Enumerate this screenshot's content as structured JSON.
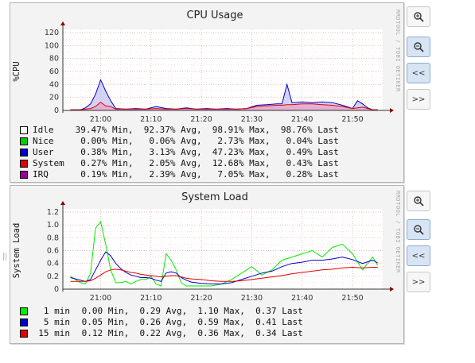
{
  "vertical_label": "RRDTOOL / TOBI OETIKER",
  "buttons": {
    "zoom_in_icon": "zoom-in-icon",
    "zoom_out_icon": "zoom-out-icon",
    "prev": "<<",
    "next": ">>"
  },
  "chart_data": [
    {
      "type": "area",
      "title": "CPU Usage",
      "ylabel": "%CPU",
      "ylim": [
        0,
        120
      ],
      "yticks": [
        "0",
        "20",
        "40",
        "60",
        "80",
        "100",
        "120"
      ],
      "xticks": [
        "21:00",
        "21:10",
        "21:20",
        "21:30",
        "21:40",
        "21:50"
      ],
      "x": [
        "20:54",
        "20:56",
        "20:57",
        "20:58",
        "20:59",
        "21:00",
        "21:01",
        "21:02",
        "21:03",
        "21:05",
        "21:07",
        "21:09",
        "21:11",
        "21:13",
        "21:15",
        "21:17",
        "21:19",
        "21:21",
        "21:23",
        "21:25",
        "21:27",
        "21:29",
        "21:31",
        "21:33",
        "21:35",
        "21:36",
        "21:37",
        "21:38",
        "21:40",
        "21:42",
        "21:44",
        "21:46",
        "21:48",
        "21:50",
        "21:51",
        "21:52",
        "21:53",
        "21:54",
        "21:55"
      ],
      "series": [
        {
          "name": "User",
          "color": "#0000cc",
          "values": [
            1,
            1,
            4,
            10,
            25,
            47,
            30,
            15,
            3,
            2,
            3,
            2,
            6,
            3,
            2,
            4,
            2,
            3,
            2,
            3,
            2,
            3,
            8,
            9,
            10,
            10,
            40,
            12,
            13,
            12,
            13,
            12,
            8,
            3,
            15,
            10,
            4,
            1,
            1
          ]
        },
        {
          "name": "System",
          "color": "#e00000",
          "values": [
            1,
            1,
            2,
            3,
            6,
            12.7,
            7,
            6,
            2,
            2,
            2,
            2,
            3,
            2,
            2,
            3,
            2,
            2,
            2,
            2,
            2,
            3,
            6,
            7,
            8,
            8,
            9,
            9,
            10,
            10,
            9,
            8,
            6,
            3,
            4,
            5,
            3,
            1,
            1
          ]
        }
      ],
      "legend": [
        {
          "name": "Idle",
          "color": "#ffffff",
          "min": "39.47%",
          "avg": "92.37%",
          "max": "98.91%",
          "last": "98.76%"
        },
        {
          "name": "Nice",
          "color": "#00cc00",
          "min": "0.00%",
          "avg": "0.06%",
          "max": "2.73%",
          "last": "0.04%"
        },
        {
          "name": "User",
          "color": "#0000cc",
          "min": "0.38%",
          "avg": "3.13%",
          "max": "47.23%",
          "last": "0.49%"
        },
        {
          "name": "System",
          "color": "#e00000",
          "min": "0.27%",
          "avg": "2.05%",
          "max": "12.68%",
          "last": "0.43%"
        },
        {
          "name": "IRQ",
          "color": "#990099",
          "min": "0.19%",
          "avg": "2.39%",
          "max": "7.05%",
          "last": "0.28%"
        }
      ]
    },
    {
      "type": "line",
      "title": "System Load",
      "ylabel": "System Load",
      "ylim": [
        0,
        1.2
      ],
      "yticks": [
        "0",
        "0.2",
        "0.4",
        "0.6",
        "0.8",
        "1.0",
        "1.2"
      ],
      "xticks": [
        "21:00",
        "21:10",
        "21:20",
        "21:30",
        "21:40",
        "21:50"
      ],
      "x": [
        "20:54",
        "20:55",
        "20:56",
        "20:57",
        "20:58",
        "20:59",
        "21:00",
        "21:01",
        "21:02",
        "21:03",
        "21:04",
        "21:05",
        "21:06",
        "21:07",
        "21:08",
        "21:09",
        "21:10",
        "21:11",
        "21:12",
        "21:13",
        "21:14",
        "21:15",
        "21:16",
        "21:17",
        "21:18",
        "21:20",
        "21:22",
        "21:24",
        "21:26",
        "21:28",
        "21:30",
        "21:32",
        "21:34",
        "21:36",
        "21:38",
        "21:40",
        "21:42",
        "21:44",
        "21:46",
        "21:48",
        "21:50",
        "21:52",
        "21:54",
        "21:55"
      ],
      "series": [
        {
          "name": "1 min",
          "color": "#00ee00",
          "values": [
            0.2,
            0.15,
            0.1,
            0.08,
            0.25,
            0.95,
            1.05,
            0.7,
            0.3,
            0.1,
            0.1,
            0.12,
            0.08,
            0.12,
            0.15,
            0.15,
            0.2,
            0.08,
            0.05,
            0.55,
            0.45,
            0.3,
            0.1,
            0.05,
            0.05,
            0.05,
            0.05,
            0.08,
            0.15,
            0.25,
            0.35,
            0.22,
            0.3,
            0.45,
            0.5,
            0.55,
            0.6,
            0.5,
            0.65,
            0.7,
            0.55,
            0.3,
            0.5,
            0.37
          ]
        },
        {
          "name": "5 min",
          "color": "#0000cc",
          "values": [
            0.18,
            0.16,
            0.14,
            0.12,
            0.15,
            0.3,
            0.45,
            0.58,
            0.52,
            0.4,
            0.32,
            0.26,
            0.22,
            0.2,
            0.18,
            0.18,
            0.17,
            0.14,
            0.12,
            0.25,
            0.27,
            0.25,
            0.18,
            0.14,
            0.11,
            0.09,
            0.08,
            0.08,
            0.1,
            0.15,
            0.2,
            0.25,
            0.28,
            0.35,
            0.4,
            0.42,
            0.45,
            0.45,
            0.47,
            0.5,
            0.46,
            0.4,
            0.45,
            0.41
          ]
        },
        {
          "name": "15 min",
          "color": "#e00000",
          "values": [
            0.12,
            0.12,
            0.12,
            0.12,
            0.13,
            0.17,
            0.22,
            0.27,
            0.3,
            0.31,
            0.3,
            0.28,
            0.26,
            0.25,
            0.23,
            0.22,
            0.21,
            0.2,
            0.19,
            0.2,
            0.21,
            0.21,
            0.19,
            0.17,
            0.16,
            0.15,
            0.13,
            0.12,
            0.12,
            0.13,
            0.15,
            0.17,
            0.19,
            0.21,
            0.24,
            0.26,
            0.28,
            0.3,
            0.31,
            0.33,
            0.34,
            0.33,
            0.34,
            0.34
          ]
        }
      ],
      "legend": [
        {
          "name": "1 min",
          "color": "#00ee00",
          "min": "0.00",
          "avg": "0.29",
          "max": "1.10",
          "last": "0.37"
        },
        {
          "name": "5 min",
          "color": "#0000cc",
          "min": "0.05",
          "avg": "0.26",
          "max": "0.59",
          "last": "0.41"
        },
        {
          "name": "15 min",
          "color": "#e00000",
          "min": "0.12",
          "avg": "0.22",
          "max": "0.36",
          "last": "0.34"
        }
      ]
    }
  ],
  "labels": {
    "min": "Min,",
    "avg": "Avg,",
    "max": "Max,",
    "last": "Last"
  }
}
